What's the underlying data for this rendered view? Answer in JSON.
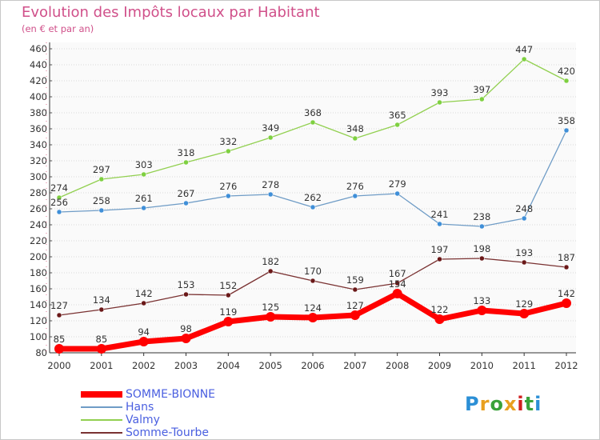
{
  "header": {
    "title": "Evolution des Impôts locaux par Habitant",
    "subtitle": "(en € et par an)"
  },
  "logo": {
    "text": "Proxiti",
    "colors": [
      "#2b8fd6",
      "#e8a020",
      "#3aa23a",
      "#e8a020",
      "#d02020",
      "#3aa23a",
      "#2b8fd6"
    ]
  },
  "chart_data": {
    "type": "line",
    "title": "Evolution des Impôts locaux par Habitant",
    "subtitle": "(en € et par an)",
    "xlabel": "",
    "ylabel": "",
    "x": [
      2000,
      2001,
      2002,
      2003,
      2004,
      2005,
      2006,
      2007,
      2008,
      2009,
      2010,
      2011,
      2012
    ],
    "ylim": [
      80,
      460
    ],
    "ytick_step": 20,
    "grid": "horizontal dotted",
    "legend_position": "bottom-left",
    "series": [
      {
        "name": "SOMME-BIONNE",
        "color": "#ff0000",
        "marker": "#ff0000",
        "thick": true,
        "values": [
          85,
          85,
          94,
          98,
          119,
          125,
          124,
          127,
          154,
          122,
          133,
          129,
          142
        ]
      },
      {
        "name": "Hans",
        "color": "#6f9cc6",
        "marker": "#3f8fd8",
        "thick": false,
        "values": [
          256,
          258,
          261,
          267,
          276,
          278,
          262,
          276,
          279,
          241,
          238,
          248,
          358
        ]
      },
      {
        "name": "Valmy",
        "color": "#92d050",
        "marker": "#7ed040",
        "thick": false,
        "values": [
          274,
          297,
          303,
          318,
          332,
          349,
          368,
          348,
          365,
          393,
          397,
          447,
          420
        ]
      },
      {
        "name": "Somme-Tourbe",
        "color": "#7a3232",
        "marker": "#6a1818",
        "thick": false,
        "values": [
          127,
          134,
          142,
          153,
          152,
          182,
          170,
          159,
          167,
          197,
          198,
          193,
          187
        ]
      }
    ]
  }
}
